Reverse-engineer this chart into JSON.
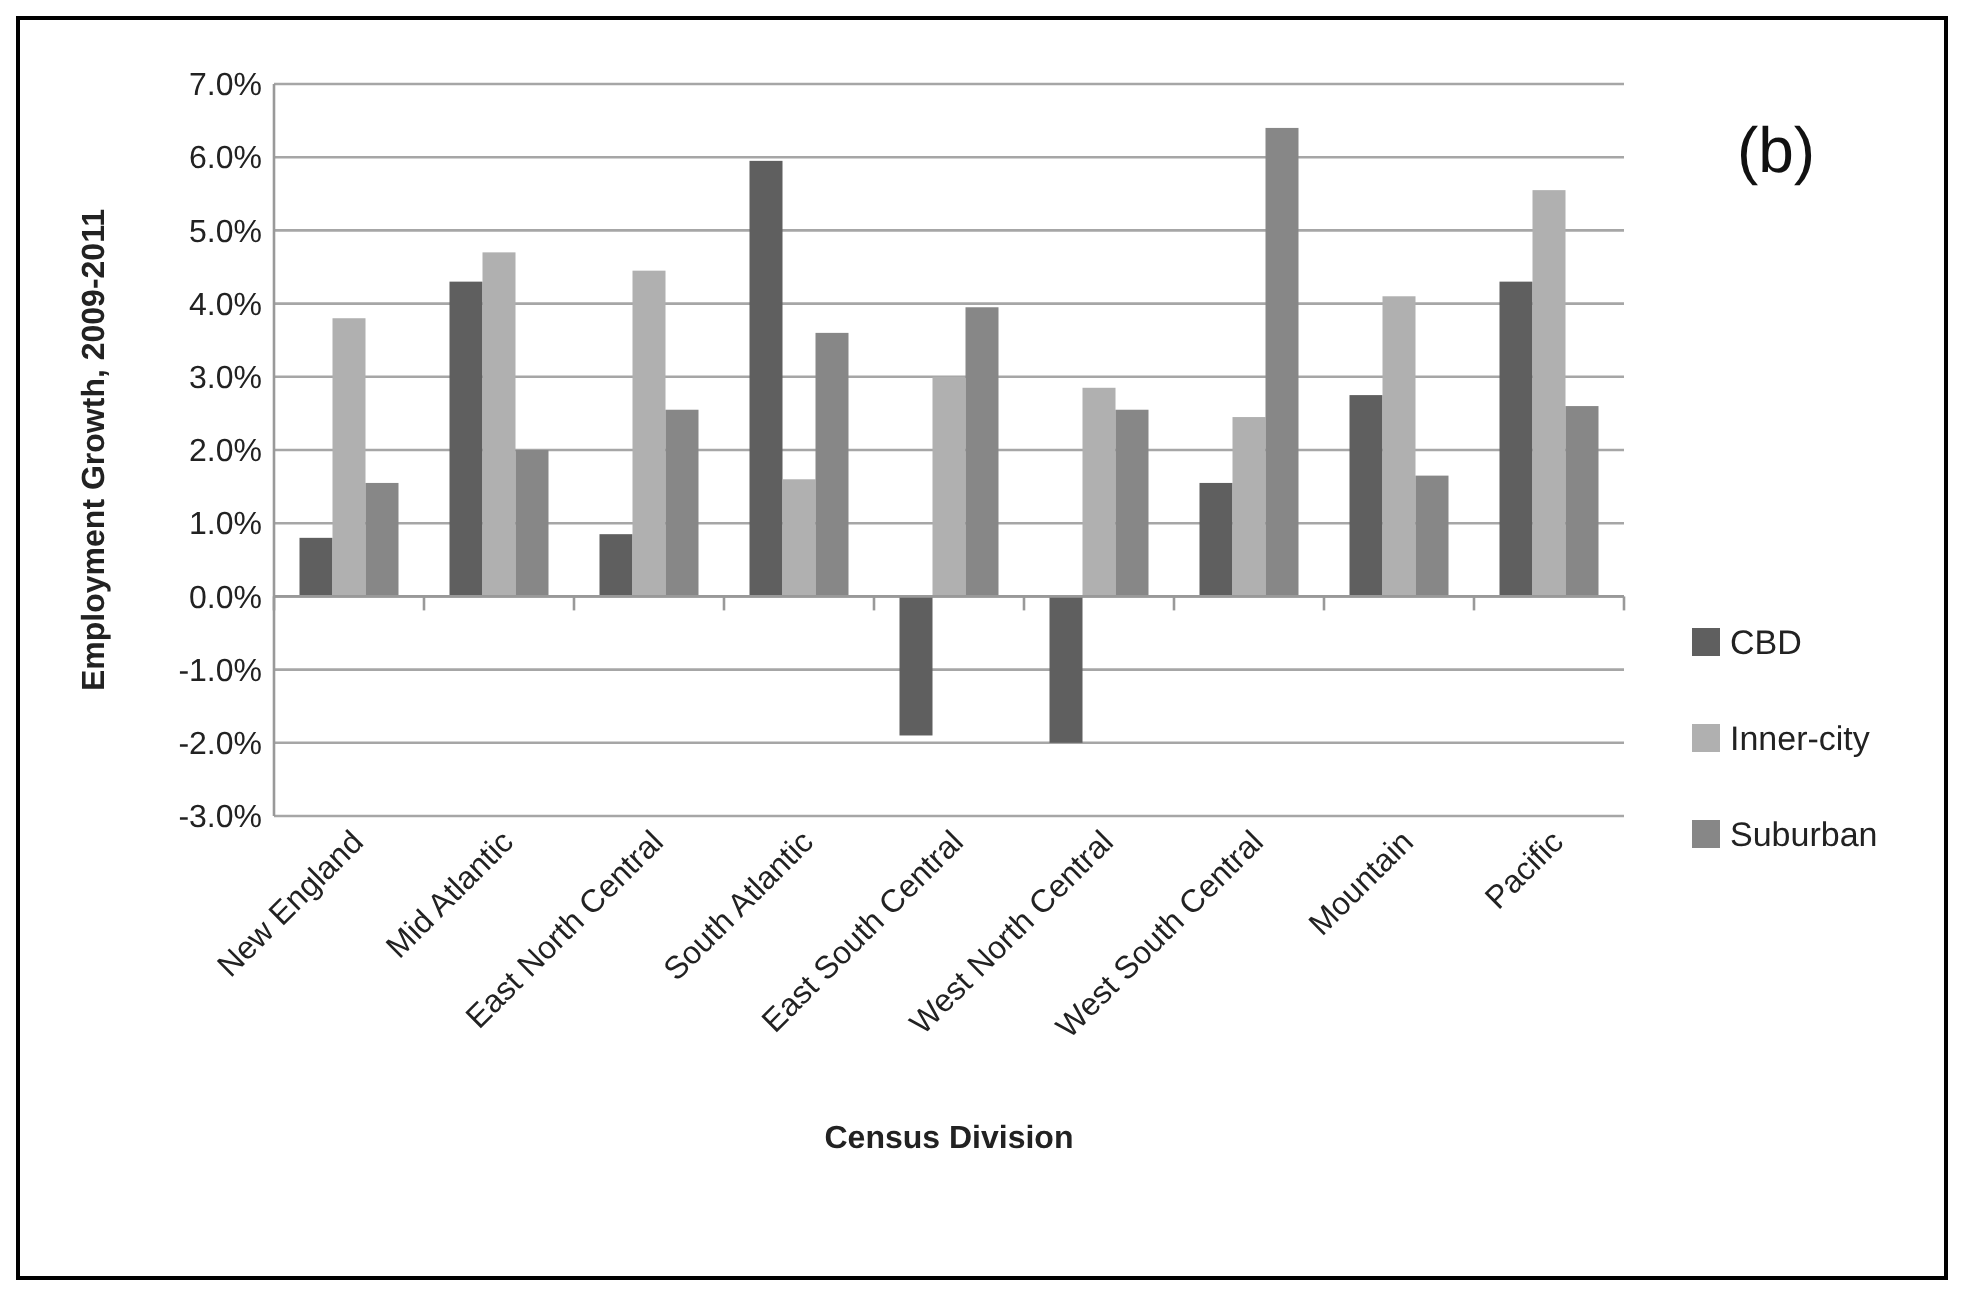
{
  "chart_data": {
    "type": "bar",
    "xlabel": "Census Division",
    "ylabel": "Employment Growth, 2009-2011",
    "annotations": [
      "(b)"
    ],
    "categories": [
      "New England",
      "Mid Atlantic",
      "East North Central",
      "South Atlantic",
      "East South Central",
      "West North Central",
      "West South Central",
      "Mountain",
      "Pacific"
    ],
    "series": [
      {
        "name": "CBD",
        "color": "#5f5f5f",
        "values": [
          0.8,
          4.3,
          0.85,
          5.95,
          -1.9,
          -2.0,
          1.55,
          2.75,
          4.3
        ]
      },
      {
        "name": "Inner-city",
        "color": "#b0b0b0",
        "values": [
          3.8,
          4.7,
          4.45,
          1.6,
          3.0,
          2.85,
          2.45,
          4.1,
          5.55
        ]
      },
      {
        "name": "Suburban",
        "color": "#878787",
        "values": [
          1.55,
          2.0,
          2.55,
          3.6,
          3.95,
          2.55,
          6.4,
          1.65,
          2.6
        ]
      }
    ],
    "ylim": [
      -3,
      7
    ],
    "yticks": [
      {
        "value": -3,
        "label": "-3.0%"
      },
      {
        "value": -2,
        "label": "-2.0%"
      },
      {
        "value": -1,
        "label": "-1.0%"
      },
      {
        "value": 0,
        "label": "0.0%"
      },
      {
        "value": 1,
        "label": "1.0%"
      },
      {
        "value": 2,
        "label": "2.0%"
      },
      {
        "value": 3,
        "label": "3.0%"
      },
      {
        "value": 4,
        "label": "4.0%"
      },
      {
        "value": 5,
        "label": "5.0%"
      },
      {
        "value": 6,
        "label": "6.0%"
      },
      {
        "value": 7,
        "label": "7.0%"
      }
    ],
    "grid": "y",
    "legend": "right"
  }
}
